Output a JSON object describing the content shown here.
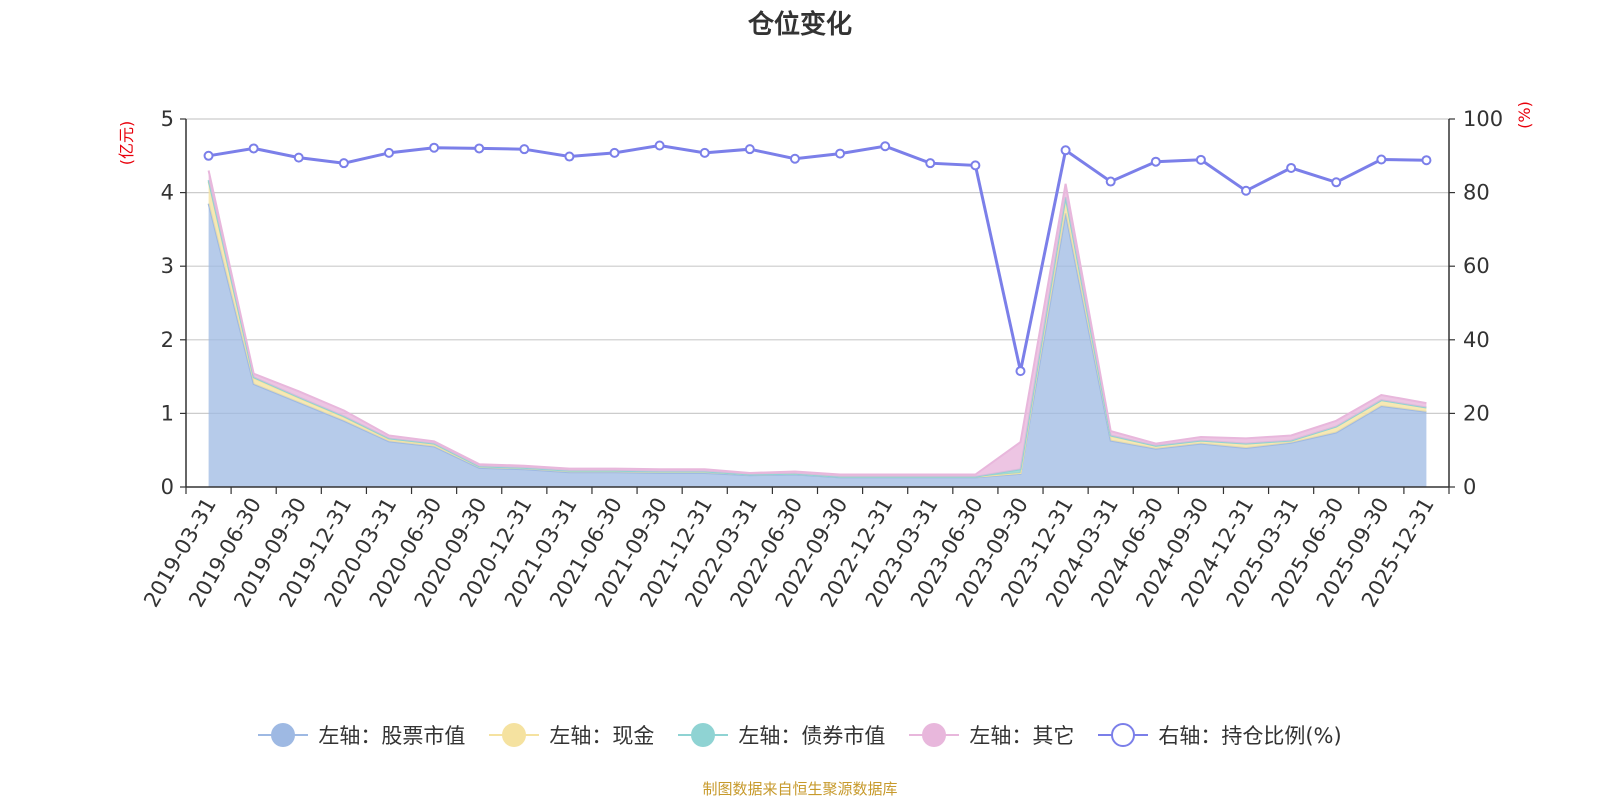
{
  "title": "仓位变化",
  "source": "制图数据来自恒生聚源数据库",
  "colors": {
    "stock": "#9eb9e3",
    "cash": "#f5e2a0",
    "bond": "#8fd3d3",
    "other": "#e8b7dc",
    "ratio": "#7b7fe9",
    "axis_unit": "#e8000b"
  },
  "legend": [
    {
      "key": "stock",
      "label": "左轴：股票市值",
      "hollow": false
    },
    {
      "key": "cash",
      "label": "左轴：现金",
      "hollow": false
    },
    {
      "key": "bond",
      "label": "左轴：债券市值",
      "hollow": false
    },
    {
      "key": "other",
      "label": "左轴：其它",
      "hollow": false
    },
    {
      "key": "ratio",
      "label": "右轴：持仓比例(%)",
      "hollow": true
    }
  ],
  "chart_data": {
    "type": "area",
    "categories": [
      "2019-03-31",
      "2019-06-30",
      "2019-09-30",
      "2019-12-31",
      "2020-03-31",
      "2020-06-30",
      "2020-09-30",
      "2020-12-31",
      "2021-03-31",
      "2021-06-30",
      "2021-09-30",
      "2021-12-31",
      "2022-03-31",
      "2022-06-30",
      "2022-09-30",
      "2022-12-31",
      "2023-03-31",
      "2023-06-30",
      "2023-09-30",
      "2023-12-31",
      "2024-03-31",
      "2024-06-30",
      "2024-09-30",
      "2024-12-31",
      "2025-03-31",
      "2025-06-30",
      "2025-09-30",
      "2025-12-31"
    ],
    "left_axis": {
      "label": "(亿元)",
      "min": 0,
      "max": 5,
      "ticks": [
        0,
        1,
        2,
        3,
        4,
        5
      ]
    },
    "right_axis": {
      "label": "(%)",
      "min": 0,
      "max": 100,
      "ticks": [
        0,
        20,
        40,
        60,
        80,
        100
      ]
    },
    "series": [
      {
        "name": "左轴：股票市值",
        "key": "stock",
        "axis": "left",
        "stacked": true,
        "values": [
          3.85,
          1.4,
          1.15,
          0.9,
          0.62,
          0.55,
          0.26,
          0.24,
          0.2,
          0.2,
          0.19,
          0.19,
          0.16,
          0.17,
          0.13,
          0.13,
          0.13,
          0.13,
          0.18,
          3.72,
          0.63,
          0.52,
          0.59,
          0.53,
          0.6,
          0.74,
          1.1,
          1.02
        ]
      },
      {
        "name": "左轴：现金",
        "key": "cash",
        "axis": "left",
        "stacked": true,
        "values": [
          0.3,
          0.08,
          0.06,
          0.05,
          0.03,
          0.03,
          0.02,
          0.02,
          0.02,
          0.02,
          0.02,
          0.02,
          0.01,
          0.01,
          0.01,
          0.01,
          0.01,
          0.01,
          0.01,
          0.2,
          0.06,
          0.04,
          0.04,
          0.06,
          0.03,
          0.08,
          0.08,
          0.06
        ]
      },
      {
        "name": "左轴：债券市值",
        "key": "bond",
        "axis": "left",
        "stacked": true,
        "values": [
          0.02,
          0.01,
          0.01,
          0.01,
          0.01,
          0.01,
          0.0,
          0.0,
          0.0,
          0.0,
          0.0,
          0.0,
          0.0,
          0.0,
          0.0,
          0.0,
          0.0,
          0.0,
          0.05,
          0.02,
          0.01,
          0.0,
          0.0,
          0.0,
          0.0,
          0.0,
          0.0,
          0.0
        ]
      },
      {
        "name": "左轴：其它",
        "key": "other",
        "axis": "left",
        "stacked": true,
        "values": [
          0.13,
          0.05,
          0.08,
          0.08,
          0.04,
          0.03,
          0.03,
          0.03,
          0.03,
          0.03,
          0.03,
          0.03,
          0.02,
          0.03,
          0.03,
          0.03,
          0.03,
          0.03,
          0.37,
          0.18,
          0.06,
          0.03,
          0.05,
          0.07,
          0.07,
          0.08,
          0.07,
          0.06
        ]
      },
      {
        "name": "右轴：持仓比例(%)",
        "key": "ratio",
        "axis": "right",
        "stacked": false,
        "values": [
          90,
          92,
          89.5,
          88,
          90.8,
          92.2,
          92,
          91.8,
          89.8,
          90.8,
          92.8,
          90.8,
          91.8,
          89.2,
          90.6,
          92.6,
          88,
          87.4,
          31.5,
          91.5,
          83,
          88.4,
          88.9,
          80.5,
          86.7,
          82.8,
          89,
          88.8
        ]
      }
    ]
  }
}
